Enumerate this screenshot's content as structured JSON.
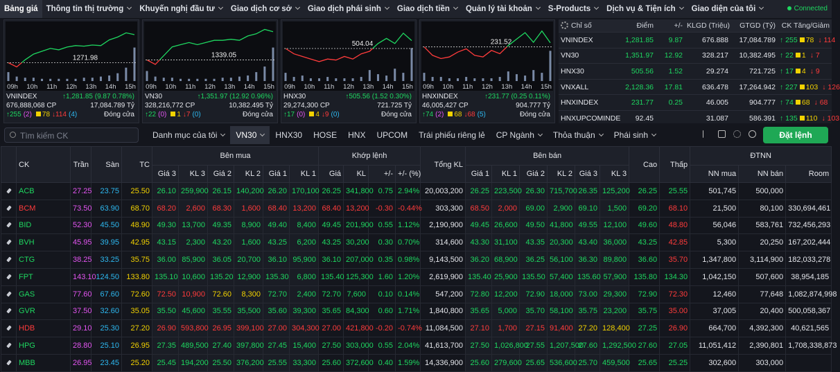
{
  "nav": {
    "items": [
      "Bảng giá",
      "Thông tin thị trường",
      "Khuyến nghị đầu tư",
      "Giao dịch cơ sở",
      "Giao dịch phái sinh",
      "Giao dịch tiền",
      "Quản lý tài khoản",
      "S-Products",
      "Dịch vụ & Tiện ích",
      "Giao diện của tôi"
    ],
    "active": 0,
    "status": "Connected"
  },
  "mini_charts": [
    {
      "type": "line",
      "name": "VNINDEX",
      "x_labels": [
        "09h",
        "10h",
        "11h",
        "12h",
        "13h",
        "14h",
        "15h"
      ],
      "ref": 1271.98,
      "values": [
        1271.98,
        1270.5,
        1273,
        1275,
        1276,
        1277,
        1276.5,
        1277.5,
        1278,
        1277.8,
        1278.2,
        1278,
        1280,
        1281,
        1282.5,
        1281.85
      ],
      "volume": [
        8,
        4,
        3,
        3,
        2,
        2,
        2,
        2,
        2,
        3,
        3,
        4,
        5,
        7,
        12,
        30
      ],
      "ylim": [
        1266,
        1286
      ],
      "vlim": [
        0,
        32
      ],
      "change": "↑1,281.85 (9.87 0.78%)",
      "volume_text": "676,888,068 CP",
      "value_text": "17,084.789 Tỷ",
      "up": "↑255",
      "ceil": "(2)",
      "same": "78",
      "down": "↓114",
      "floor": "(4)",
      "status": "Đóng cửa"
    },
    {
      "type": "line",
      "name": "VN30",
      "x_labels": [
        "09h",
        "10h",
        "11h",
        "12h",
        "13h",
        "14h",
        "15h"
      ],
      "ref": 1339.05,
      "values": [
        1339.05,
        1337,
        1341,
        1345,
        1346,
        1347,
        1346,
        1347,
        1348,
        1348,
        1348.5,
        1348,
        1350,
        1351,
        1353,
        1351.97
      ],
      "volume": [
        9,
        4,
        3,
        3,
        2,
        2,
        2,
        2,
        2,
        3,
        3,
        4,
        5,
        8,
        13,
        30
      ],
      "ylim": [
        1330,
        1356
      ],
      "vlim": [
        0,
        32
      ],
      "change": "↑1,351.97 (12.92 0.96%)",
      "volume_text": "328,216,772 CP",
      "value_text": "10,382.495 Tỷ",
      "up": "↑22",
      "ceil": "(0)",
      "same": "1",
      "down": "↓7",
      "floor": "(0)",
      "status": "Đóng cửa"
    },
    {
      "type": "line",
      "name": "HNX30",
      "x_labels": [
        "09h",
        "10h",
        "11h",
        "12h",
        "13h",
        "14h",
        "15h"
      ],
      "ref": 504.04,
      "values": [
        504.04,
        503,
        502.5,
        502,
        501.5,
        502,
        501.8,
        502.5,
        502,
        503,
        503.5,
        505,
        506,
        505,
        507,
        505.56
      ],
      "volume": [
        6,
        3,
        4,
        2,
        2,
        3,
        2,
        2,
        2,
        3,
        8,
        5,
        4,
        9,
        6,
        24
      ],
      "ylim": [
        498,
        509
      ],
      "vlim": [
        0,
        26
      ],
      "change": "↑505.56 (1.52 0.30%)",
      "volume_text": "29,274,300 CP",
      "value_text": "721.725 Tỷ",
      "up": "↑17",
      "ceil": "(0)",
      "same": "4",
      "down": "↓9",
      "floor": "(0)",
      "status": "Đóng cửa"
    },
    {
      "type": "line",
      "name": "HNXINDEX",
      "x_labels": [
        "09h",
        "10h",
        "11h",
        "12h",
        "13h",
        "14h",
        "15h"
      ],
      "ref": 231.52,
      "values": [
        231.52,
        231,
        230.8,
        230.9,
        231.2,
        231.4,
        231,
        230.9,
        231.3,
        231.1,
        231.6,
        232,
        232.4,
        231.8,
        232.5,
        231.77
      ],
      "volume": [
        6,
        3,
        3,
        2,
        2,
        3,
        2,
        2,
        2,
        3,
        7,
        5,
        4,
        8,
        6,
        22
      ],
      "ylim": [
        229.5,
        233
      ],
      "vlim": [
        0,
        26
      ],
      "change": "↑231.77 (0.25 0.11%)",
      "volume_text": "46,005,427 CP",
      "value_text": "904.777 Tỷ",
      "up": "↑74",
      "ceil": "(2)",
      "same": "68",
      "down": "↓68",
      "floor": "(5)",
      "status": "Đóng cửa"
    }
  ],
  "index_table": {
    "headers": [
      "Chỉ số",
      "Điểm",
      "+/-",
      "KLGD (Triệu)",
      "GTGD (Tỷ)",
      "CK Tăng/Giảm"
    ],
    "rows": [
      {
        "name": "VNINDEX",
        "point": "1,281.85",
        "change": "9.87",
        "volume": "676.888",
        "value": "17,084.789",
        "up": "↑ 255",
        "same": "78",
        "down": "↓ 114"
      },
      {
        "name": "VN30",
        "point": "1,351.97",
        "change": "12.92",
        "volume": "328.217",
        "value": "10,382.495",
        "up": "↑ 22",
        "same": "1",
        "down": "↓ 7"
      },
      {
        "name": "HNX30",
        "point": "505.56",
        "change": "1.52",
        "volume": "29.274",
        "value": "721.725",
        "up": "↑ 17",
        "same": "4",
        "down": "↓ 9"
      },
      {
        "name": "VNXALL",
        "point": "2,128.36",
        "change": "17.81",
        "volume": "636.478",
        "value": "17,264.942",
        "up": "↑ 227",
        "same": "103",
        "down": "↓ 126"
      },
      {
        "name": "HNXINDEX",
        "point": "231.77",
        "change": "0.25",
        "volume": "46.005",
        "value": "904.777",
        "up": "↑ 74",
        "same": "68",
        "down": "↓ 68"
      },
      {
        "name": "HNXUPCOMINDE",
        "point": "92.45",
        "volume": "31.087",
        "value": "586.391",
        "up": "↑ 135",
        "same": "110",
        "down": "↓ 103"
      }
    ]
  },
  "toolbar": {
    "search_placeholder": "Tìm kiếm CK",
    "tabs": [
      {
        "label": "Danh mục của tôi",
        "menu": true
      },
      {
        "label": "VN30",
        "menu": true
      },
      {
        "label": "HNX30"
      },
      {
        "label": "HOSE"
      },
      {
        "label": "HNX"
      },
      {
        "label": "UPCOM"
      },
      {
        "label": "Trái phiếu riêng lẻ"
      },
      {
        "label": "CP Ngành",
        "menu": true
      },
      {
        "label": "Thỏa thuận",
        "menu": true
      },
      {
        "label": "Phái sinh",
        "menu": true
      }
    ],
    "active": 1,
    "order_button": "Đặt lệnh"
  },
  "board": {
    "columns": [
      "CK",
      "Trần",
      "Sàn",
      "TC",
      {
        "group": "Bên mua",
        "cols": [
          "Giá 3",
          "KL 3",
          "Giá 2",
          "KL 2",
          "Giá 1",
          "KL 1"
        ]
      },
      {
        "group": "Khớp lệnh",
        "cols": [
          "Giá",
          "KL",
          "+/-",
          "+/- (%)"
        ]
      },
      "Tổng KL",
      {
        "group": "Bên bán",
        "cols": [
          "Giá 1",
          "KL 1",
          "Giá 2",
          "KL 2",
          "Giá 3",
          "KL 3"
        ]
      },
      "Cao",
      "Thấp",
      {
        "group": "ĐTNN",
        "cols": [
          "NN mua",
          "NN bán",
          "Room"
        ]
      }
    ],
    "rows": [
      {
        "symbol": "ACB",
        "cells": [
          "27.25",
          "23.75",
          "25.50",
          "26.10",
          "259,900",
          "26.15",
          "140,200",
          "26.20",
          "170,100",
          "26.25",
          "341,800",
          "0.75",
          "2.94%",
          "20,003,200",
          "26.25",
          "223,500",
          "26.30",
          "715,700",
          "26.35",
          "125,200",
          "26.25",
          "25.55",
          "501,745",
          "500,000",
          null
        ]
      },
      {
        "symbol": "BCM",
        "cells": [
          "73.50",
          "63.90",
          "68.70",
          "68.20",
          "2,600",
          "68.30",
          "1,600",
          "68.40",
          "13,200",
          "68.40",
          "13,200",
          "-0.30",
          "-0.44%",
          "303,300",
          "68.50",
          "2,000",
          "69.00",
          "2,900",
          "69.10",
          "1,500",
          "69.20",
          "68.10",
          "21,500",
          "80,100",
          "330,694,461"
        ]
      },
      {
        "symbol": "BID",
        "cells": [
          "52.30",
          "45.50",
          "48.90",
          "49.30",
          "13,700",
          "49.35",
          "8,900",
          "49.40",
          "8,400",
          "49.45",
          "201,900",
          "0.55",
          "1.12%",
          "2,190,900",
          "49.45",
          "26,600",
          "49.50",
          "41,800",
          "49.55",
          "12,100",
          "49.60",
          "48.80",
          "56,046",
          "583,761",
          "732,456,293"
        ]
      },
      {
        "symbol": "BVH",
        "cells": [
          "45.95",
          "39.95",
          "42.95",
          "43.15",
          "2,300",
          "43.20",
          "1,600",
          "43.25",
          "6,200",
          "43.25",
          "30,200",
          "0.30",
          "0.70%",
          "314,600",
          "43.30",
          "31,100",
          "43.35",
          "20,300",
          "43.40",
          "36,000",
          "43.25",
          "42.85",
          "5,300",
          "20,250",
          "167,202,444"
        ]
      },
      {
        "symbol": "CTG",
        "cells": [
          "38.25",
          "33.25",
          "35.75",
          "36.00",
          "85,900",
          "36.05",
          "20,700",
          "36.10",
          "95,900",
          "36.10",
          "207,000",
          "0.35",
          "0.98%",
          "9,143,500",
          "36.20",
          "68,900",
          "36.25",
          "56,100",
          "36.30",
          "89,800",
          "36.60",
          "35.70",
          "1,347,800",
          "3,114,900",
          "182,033,278"
        ]
      },
      {
        "symbol": "FPT",
        "cells": [
          "143.10",
          "124.50",
          "133.80",
          "135.10",
          "10,600",
          "135.20",
          "12,900",
          "135.30",
          "6,800",
          "135.40",
          "125,300",
          "1.60",
          "1.20%",
          "2,619,900",
          "135.40",
          "25,900",
          "135.50",
          "57,400",
          "135.60",
          "57,900",
          "135.80",
          "134.30",
          "1,042,150",
          "507,600",
          "38,954,185"
        ]
      },
      {
        "symbol": "GAS",
        "cells": [
          "77.60",
          "67.60",
          "72.60",
          "72.50",
          "10,900",
          "72.60",
          "8,300",
          "72.70",
          "2,400",
          "72.70",
          "7,600",
          "0.10",
          "0.14%",
          "547,200",
          "72.80",
          "12,200",
          "72.90",
          "18,000",
          "73.00",
          "29,300",
          "72.90",
          "72.30",
          "12,460",
          "77,648",
          "1,082,874,998"
        ]
      },
      {
        "symbol": "GVR",
        "cells": [
          "37.50",
          "32.60",
          "35.05",
          "35.50",
          "45,600",
          "35.55",
          "35,500",
          "35.60",
          "39,300",
          "35.65",
          "84,300",
          "0.60",
          "1.71%",
          "1,840,800",
          "35.65",
          "5,000",
          "35.70",
          "58,100",
          "35.75",
          "23,200",
          "35.75",
          "35.00",
          "37,005",
          "20,400",
          "500,058,367"
        ]
      },
      {
        "symbol": "HDB",
        "cells": [
          "29.10",
          "25.30",
          "27.20",
          "26.90",
          "593,800",
          "26.95",
          "399,100",
          "27.00",
          "304,300",
          "27.00",
          "421,800",
          "-0.20",
          "-0.74%",
          "11,084,500",
          "27.10",
          "1,700",
          "27.15",
          "91,400",
          "27.20",
          "128,400",
          "27.25",
          "26.90",
          "664,700",
          "4,392,300",
          "40,621,565"
        ]
      },
      {
        "symbol": "HPG",
        "cells": [
          "28.80",
          "25.10",
          "26.95",
          "27.35",
          "489,500",
          "27.40",
          "397,800",
          "27.45",
          "15,400",
          "27.50",
          "303,000",
          "0.55",
          "2.04%",
          "41,613,700",
          "27.50",
          "1,026,800",
          "27.55",
          "1,207,500",
          "27.60",
          "1,292,500",
          "27.60",
          "27.05",
          "11,051,412",
          "2,390,801",
          "1,708,338,873"
        ]
      },
      {
        "symbol": "MBB",
        "cells": [
          "26.95",
          "23.45",
          "25.20",
          "25.45",
          "194,200",
          "25.50",
          "376,200",
          "25.55",
          "33,300",
          "25.60",
          "372,600",
          "0.40",
          "1.59%",
          "14,336,900",
          "25.60",
          "279,600",
          "25.65",
          "536,600",
          "25.70",
          "459,500",
          "25.65",
          "25.25",
          "302,600",
          "303,000",
          null
        ]
      }
    ]
  }
}
